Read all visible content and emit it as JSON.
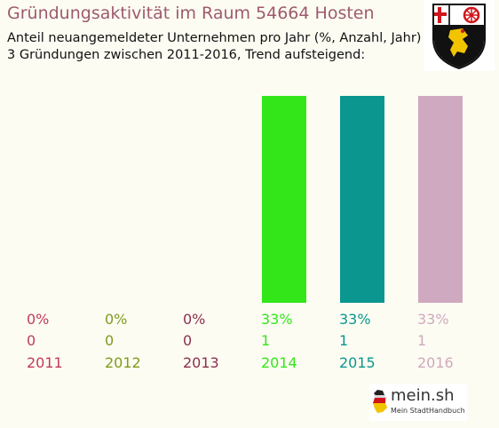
{
  "header": {
    "title": "Gründungsaktivität im Raum 54664 Hosten",
    "subtitle_line1": "Anteil neuangemeldeter Unternehmen pro Jahr (%, Anzahl, Jahr)",
    "subtitle_line2": "3 Gründungen zwischen 2011-2016, Trend aufsteigend:"
  },
  "crest": {
    "icon": "rhineland-palatinate-coat-of-arms-icon"
  },
  "chart_data": {
    "type": "bar",
    "categories": [
      "2011",
      "2012",
      "2013",
      "2014",
      "2015",
      "2016"
    ],
    "percent_labels": [
      "0%",
      "0%",
      "0%",
      "33%",
      "33%",
      "33%"
    ],
    "counts": [
      "0",
      "0",
      "0",
      "1",
      "1",
      "1"
    ],
    "values": [
      0,
      0,
      0,
      33,
      33,
      33
    ],
    "colors": [
      "#c2395f",
      "#7f9a1f",
      "#8c2f4f",
      "#33e61a",
      "#0b9690",
      "#cfa9c0"
    ],
    "title": "",
    "xlabel": "",
    "ylabel": "",
    "ylim": [
      0,
      33
    ],
    "grid": false,
    "legend": "none"
  },
  "footer": {
    "logo_main": "mein.sh",
    "logo_sub": "Mein StadtHandbuch",
    "logo_icon": "germany-map-icon"
  }
}
